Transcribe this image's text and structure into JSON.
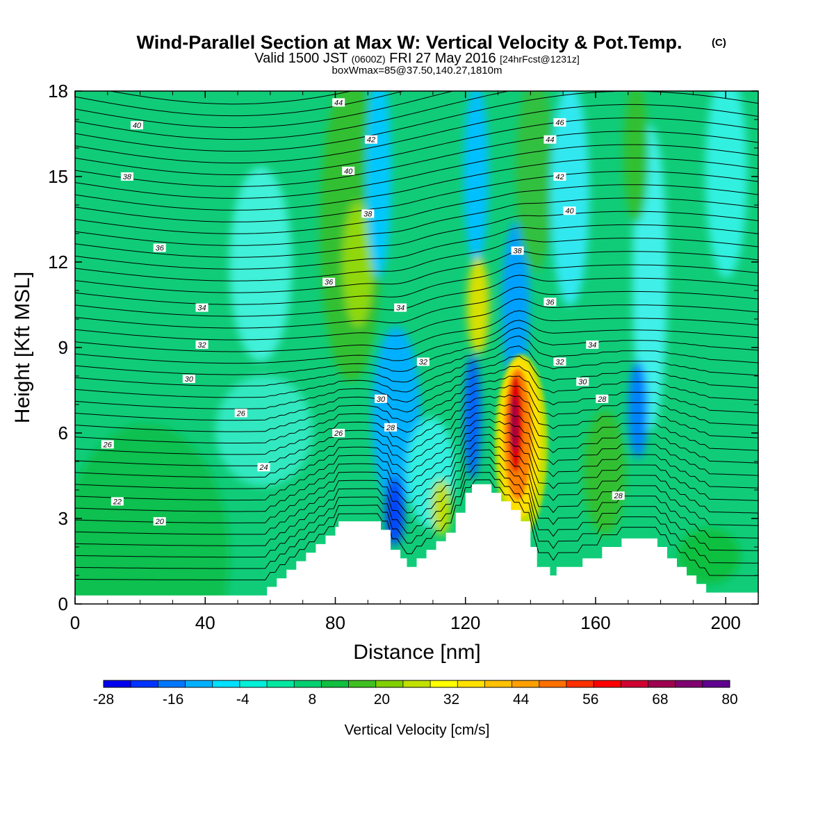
{
  "chart_data": {
    "type": "contour",
    "title": "Wind-Parallel Section at Max W: Vertical Velocity & Pot.Temp.",
    "title_tag": "(C)",
    "subtitle": {
      "part1": "Valid 1500 JST ",
      "part2": "(0600Z)",
      "part3": " FRI 27 May 2016 ",
      "part4": "[24hrFcst@1231z]"
    },
    "subtitle2": "boxWmax=85@37.50,140.27,1810m",
    "xlabel": "Distance [nm]",
    "ylabel": "Height [Kft MSL]",
    "xlim": [
      0,
      210
    ],
    "ylim": [
      0,
      18
    ],
    "x_ticks": [
      0,
      40,
      80,
      120,
      160,
      200
    ],
    "y_ticks": [
      0,
      3,
      6,
      9,
      12,
      15,
      18
    ],
    "x_tick_labels": [
      "0",
      "40",
      "80",
      "120",
      "160",
      "200"
    ],
    "y_tick_labels": [
      "0",
      "3",
      "6",
      "9",
      "12",
      "15",
      "18"
    ],
    "colorbar": {
      "label": "Vertical Velocity [cm/s]",
      "tick_labels": [
        "-28",
        "-16",
        "-4",
        "8",
        "20",
        "32",
        "44",
        "56",
        "68",
        "80"
      ],
      "colors": [
        "#0000ee",
        "#0033ff",
        "#0077ff",
        "#00b0ff",
        "#00e0ff",
        "#00f0d8",
        "#00e8a0",
        "#00d070",
        "#10c040",
        "#40c020",
        "#80d000",
        "#c0e000",
        "#ffff00",
        "#ffe000",
        "#ffc000",
        "#ffa000",
        "#ff7000",
        "#ff3000",
        "#ff0000",
        "#d00030",
        "#a00050",
        "#800070",
        "#600090"
      ]
    },
    "terrain": [
      [
        0,
        0.3
      ],
      [
        58,
        0.3
      ],
      [
        59,
        0.6
      ],
      [
        62,
        0.9
      ],
      [
        65,
        1.2
      ],
      [
        68,
        1.5
      ],
      [
        71,
        1.8
      ],
      [
        74,
        2.1
      ],
      [
        77,
        2.4
      ],
      [
        80,
        2.7
      ],
      [
        81,
        2.9
      ],
      [
        92,
        2.9
      ],
      [
        94,
        2.6
      ],
      [
        97,
        1.9
      ],
      [
        100,
        1.6
      ],
      [
        102,
        1.3
      ],
      [
        105,
        1.6
      ],
      [
        108,
        1.9
      ],
      [
        111,
        2.2
      ],
      [
        114,
        2.5
      ],
      [
        117,
        3.2
      ],
      [
        120,
        3.9
      ],
      [
        122,
        4.2
      ],
      [
        126,
        4.2
      ],
      [
        128,
        3.9
      ],
      [
        131,
        3.6
      ],
      [
        134,
        3.3
      ],
      [
        137,
        2.9
      ],
      [
        140,
        2.0
      ],
      [
        142,
        1.3
      ],
      [
        146,
        1.0
      ],
      [
        148,
        1.3
      ],
      [
        156,
        1.6
      ],
      [
        162,
        2.0
      ],
      [
        168,
        2.3
      ],
      [
        176,
        2.3
      ],
      [
        179,
        2.0
      ],
      [
        182,
        1.6
      ],
      [
        185,
        1.3
      ],
      [
        188,
        1.0
      ],
      [
        191,
        0.7
      ],
      [
        194,
        0.4
      ],
      [
        210,
        0.4
      ]
    ],
    "theta_levels": [
      20,
      22,
      24,
      26,
      28,
      30,
      32,
      34,
      36,
      38,
      40,
      42,
      44,
      46
    ],
    "theta_labels": [
      {
        "text": "20",
        "x": 26,
        "y": 2.9
      },
      {
        "text": "22",
        "x": 13,
        "y": 3.6
      },
      {
        "text": "24",
        "x": 58,
        "y": 4.8
      },
      {
        "text": "26",
        "x": 10,
        "y": 5.6
      },
      {
        "text": "26",
        "x": 51,
        "y": 6.7
      },
      {
        "text": "26",
        "x": 81,
        "y": 6.0
      },
      {
        "text": "28",
        "x": 97,
        "y": 6.2
      },
      {
        "text": "28",
        "x": 162,
        "y": 7.2
      },
      {
        "text": "28",
        "x": 167,
        "y": 3.8
      },
      {
        "text": "30",
        "x": 35,
        "y": 7.9
      },
      {
        "text": "30",
        "x": 94,
        "y": 7.2
      },
      {
        "text": "30",
        "x": 156,
        "y": 7.8
      },
      {
        "text": "32",
        "x": 39,
        "y": 9.1
      },
      {
        "text": "32",
        "x": 107,
        "y": 8.5
      },
      {
        "text": "32",
        "x": 149,
        "y": 8.5
      },
      {
        "text": "34",
        "x": 39,
        "y": 10.4
      },
      {
        "text": "34",
        "x": 100,
        "y": 10.4
      },
      {
        "text": "34",
        "x": 159,
        "y": 9.1
      },
      {
        "text": "36",
        "x": 26,
        "y": 12.5
      },
      {
        "text": "36",
        "x": 78,
        "y": 11.3
      },
      {
        "text": "36",
        "x": 146,
        "y": 10.6
      },
      {
        "text": "38",
        "x": 16,
        "y": 15.0
      },
      {
        "text": "38",
        "x": 90,
        "y": 13.7
      },
      {
        "text": "38",
        "x": 136,
        "y": 12.4
      },
      {
        "text": "40",
        "x": 19,
        "y": 16.8
      },
      {
        "text": "40",
        "x": 84,
        "y": 15.2
      },
      {
        "text": "40",
        "x": 152,
        "y": 13.8
      },
      {
        "text": "42",
        "x": 91,
        "y": 16.3
      },
      {
        "text": "42",
        "x": 149,
        "y": 15.0
      },
      {
        "text": "44",
        "x": 81,
        "y": 17.6
      },
      {
        "text": "44",
        "x": 146,
        "y": 16.3
      },
      {
        "text": "46",
        "x": 149,
        "y": 16.9
      }
    ]
  }
}
